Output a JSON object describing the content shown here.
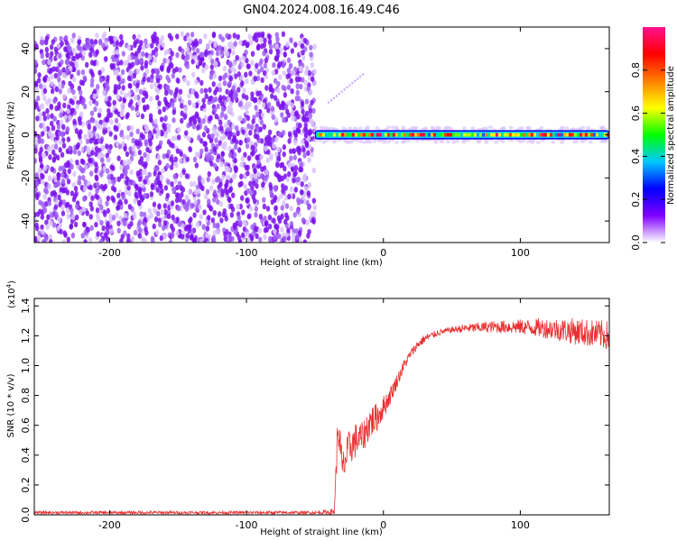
{
  "title": "GN04.2024.008.16.49.C46",
  "chart_data": [
    {
      "type": "heatmap",
      "xlabel": "Height of straight line (km)",
      "ylabel": "Frequency (Hz)",
      "xlim": [
        -255,
        165
      ],
      "ylim": [
        -50,
        50
      ],
      "xticks": [
        -200,
        -100,
        0,
        100
      ],
      "yticks": [
        -40,
        -20,
        0,
        20,
        40
      ],
      "colorbar": {
        "label": "Normalized spectral amplitude",
        "range": [
          0.0,
          1.0
        ],
        "ticks": [
          "0.0",
          "0.2",
          "0.4",
          "0.6",
          "0.8"
        ],
        "colormap": [
          "#ffffff",
          "#7f00ff",
          "#0000ff",
          "#00c8ff",
          "#00ff00",
          "#ffff00",
          "#ff8000",
          "#ff0000",
          "#ff1090"
        ]
      },
      "regions": [
        {
          "x_range": [
            -255,
            -50
          ],
          "y_range": [
            -50,
            47
          ],
          "description_value": "broadband noise",
          "amplitude": [
            0.0,
            0.15
          ]
        },
        {
          "x_range": [
            -50,
            165
          ],
          "center_frequency": 0,
          "bandwidth": 3,
          "amplitude": [
            0.3,
            1.0
          ]
        },
        {
          "x_range": [
            -40,
            -15
          ],
          "trace_frequency": [
            15,
            28
          ],
          "amplitude": [
            0.0,
            0.1
          ]
        }
      ]
    },
    {
      "type": "line",
      "xlabel": "Height of straight line (km)",
      "ylabel": "SNR (10 * v/v)",
      "ymultiplier": "(x10",
      "ymultiplier_exp": "4",
      "ymultiplier_close": ")",
      "xlim": [
        -255,
        165
      ],
      "ylim": [
        0,
        1.45
      ],
      "xticks": [
        -200,
        -100,
        0,
        100
      ],
      "yticks": [
        "0.0",
        "0.2",
        "0.4",
        "0.6",
        "0.8",
        "1.0",
        "1.2",
        "1.4"
      ],
      "series": [
        {
          "color": "#e83030",
          "x": [
            -255,
            -200,
            -150,
            -100,
            -50,
            -36,
            -33,
            -30,
            -25,
            -20,
            -15,
            -10,
            -5,
            0,
            5,
            10,
            15,
            20,
            25,
            30,
            40,
            50,
            60,
            80,
            100,
            120,
            140,
            165
          ],
          "y": [
            0.015,
            0.015,
            0.015,
            0.015,
            0.015,
            0.02,
            0.6,
            0.3,
            0.45,
            0.5,
            0.52,
            0.62,
            0.65,
            0.72,
            0.8,
            0.9,
            1.0,
            1.08,
            1.14,
            1.18,
            1.22,
            1.24,
            1.25,
            1.26,
            1.26,
            1.25,
            1.23,
            1.2
          ],
          "noise": [
            0.01,
            0.01,
            0.01,
            0.01,
            0.01,
            0.02,
            0.15,
            0.12,
            0.12,
            0.12,
            0.1,
            0.12,
            0.1,
            0.08,
            0.06,
            0.05,
            0.04,
            0.03,
            0.03,
            0.03,
            0.02,
            0.02,
            0.03,
            0.04,
            0.05,
            0.07,
            0.09,
            0.1
          ]
        }
      ]
    }
  ]
}
